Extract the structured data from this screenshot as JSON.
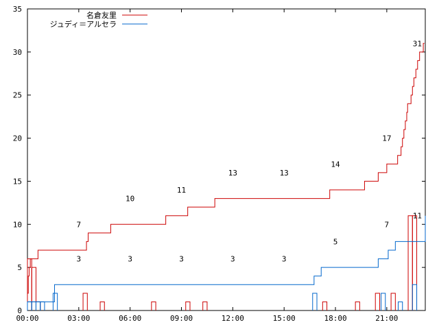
{
  "chart_data": {
    "type": "line",
    "xlim": [
      0,
      1395
    ],
    "ylim": [
      0,
      35
    ],
    "x_ticks": [
      {
        "t": 0,
        "label": "00:00"
      },
      {
        "t": 180,
        "label": "03:00"
      },
      {
        "t": 360,
        "label": "06:00"
      },
      {
        "t": 540,
        "label": "09:00"
      },
      {
        "t": 720,
        "label": "12:00"
      },
      {
        "t": 900,
        "label": "15:00"
      },
      {
        "t": 1080,
        "label": "18:00"
      },
      {
        "t": 1260,
        "label": "21:00"
      }
    ],
    "y_ticks": [
      0,
      5,
      10,
      15,
      20,
      25,
      30,
      35
    ],
    "grid": false,
    "legend_position": "top-left",
    "series": [
      {
        "name": "名倉友里",
        "color": "#cc0000",
        "cumulative": [
          [
            0,
            2
          ],
          [
            3,
            4
          ],
          [
            6,
            5
          ],
          [
            10,
            6
          ],
          [
            35,
            6
          ],
          [
            37,
            7
          ],
          [
            85,
            7
          ],
          [
            87,
            7
          ],
          [
            200,
            7
          ],
          [
            207,
            8
          ],
          [
            213,
            9
          ],
          [
            290,
            9
          ],
          [
            292,
            10
          ],
          [
            482,
            10
          ],
          [
            485,
            11
          ],
          [
            560,
            11
          ],
          [
            562,
            12
          ],
          [
            655,
            12
          ],
          [
            657,
            13
          ],
          [
            1058,
            13
          ],
          [
            1060,
            14
          ],
          [
            1180,
            14
          ],
          [
            1182,
            15
          ],
          [
            1228,
            15
          ],
          [
            1230,
            16
          ],
          [
            1258,
            16
          ],
          [
            1260,
            17
          ],
          [
            1295,
            17
          ],
          [
            1298,
            18
          ],
          [
            1308,
            18
          ],
          [
            1310,
            19
          ],
          [
            1315,
            20
          ],
          [
            1320,
            21
          ],
          [
            1325,
            22
          ],
          [
            1330,
            23
          ],
          [
            1333,
            24
          ],
          [
            1345,
            25
          ],
          [
            1350,
            26
          ],
          [
            1355,
            27
          ],
          [
            1362,
            28
          ],
          [
            1368,
            29
          ],
          [
            1375,
            30
          ],
          [
            1385,
            30
          ],
          [
            1388,
            31
          ],
          [
            1392,
            31
          ]
        ],
        "hourly": [
          [
            0,
            15,
            6
          ],
          [
            15,
            30,
            5
          ],
          [
            30,
            45,
            1
          ],
          [
            195,
            210,
            2
          ],
          [
            255,
            270,
            1
          ],
          [
            435,
            450,
            1
          ],
          [
            555,
            570,
            1
          ],
          [
            615,
            630,
            1
          ],
          [
            1035,
            1050,
            1
          ],
          [
            1150,
            1165,
            1
          ],
          [
            1220,
            1235,
            2
          ],
          [
            1275,
            1290,
            2
          ],
          [
            1335,
            1350,
            11
          ],
          [
            1350,
            1365,
            11
          ]
        ]
      },
      {
        "name": "ジュディ＝アルセラ",
        "color": "#0066cc",
        "cumulative": [
          [
            0,
            1
          ],
          [
            90,
            1
          ],
          [
            95,
            3
          ],
          [
            1000,
            3
          ],
          [
            1005,
            4
          ],
          [
            1025,
            4
          ],
          [
            1030,
            5
          ],
          [
            1225,
            5
          ],
          [
            1230,
            6
          ],
          [
            1260,
            6
          ],
          [
            1265,
            7
          ],
          [
            1285,
            7
          ],
          [
            1290,
            8
          ],
          [
            1392,
            8
          ],
          [
            1395,
            11
          ]
        ],
        "hourly": [
          [
            0,
            15,
            1
          ],
          [
            15,
            30,
            1
          ],
          [
            30,
            45,
            1
          ],
          [
            45,
            60,
            1
          ],
          [
            90,
            105,
            2
          ],
          [
            1000,
            1015,
            2
          ],
          [
            1240,
            1255,
            2
          ],
          [
            1300,
            1315,
            1
          ],
          [
            1350,
            1365,
            3
          ]
        ]
      }
    ],
    "annotations": [
      {
        "x": 180,
        "y": 10,
        "text": "7"
      },
      {
        "x": 180,
        "y": 6,
        "text": "3"
      },
      {
        "x": 360,
        "y": 13,
        "text": "10"
      },
      {
        "x": 360,
        "y": 6,
        "text": "3"
      },
      {
        "x": 540,
        "y": 14,
        "text": "11"
      },
      {
        "x": 540,
        "y": 6,
        "text": "3"
      },
      {
        "x": 720,
        "y": 16,
        "text": "13"
      },
      {
        "x": 720,
        "y": 6,
        "text": "3"
      },
      {
        "x": 900,
        "y": 16,
        "text": "13"
      },
      {
        "x": 900,
        "y": 6,
        "text": "3"
      },
      {
        "x": 1080,
        "y": 17,
        "text": "14"
      },
      {
        "x": 1080,
        "y": 8,
        "text": "5"
      },
      {
        "x": 1260,
        "y": 20,
        "text": "17"
      },
      {
        "x": 1260,
        "y": 10,
        "text": "7"
      },
      {
        "x": 1367,
        "y": 31,
        "text": "31"
      },
      {
        "x": 1367,
        "y": 11,
        "text": "11"
      }
    ]
  }
}
